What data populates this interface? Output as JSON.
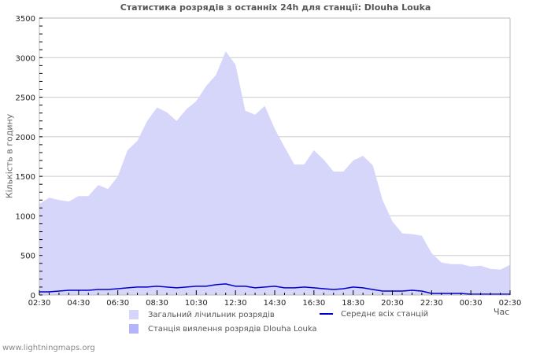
{
  "title": "Статистика розрядів з останніх 24h для станції: Dlouha Louka",
  "y_axis_label": "Кількість в годину",
  "x_axis_label": "Час",
  "footer": "www.lightningmaps.org",
  "legend": {
    "total": "Загальний лічильник розрядів",
    "station": "Станція виялення розрядів Dlouha Louka",
    "average": "Середнє всіх станцій"
  },
  "colors": {
    "total_fill": "#d6d6fa",
    "station_fill": "#b4b4fa",
    "average_line": "#0000cc",
    "grid": "#cccccc",
    "axis": "#bbbbbb"
  },
  "chart_data": {
    "type": "area",
    "title": "Статистика розрядів з останніх 24h для станції: Dlouha Louka",
    "xlabel": "Час",
    "ylabel": "Кількість в годину",
    "ylim": [
      0,
      3500
    ],
    "yticks": [
      0,
      500,
      1000,
      1500,
      2000,
      2500,
      3000,
      3500
    ],
    "xtick_labels": [
      "02:30",
      "04:30",
      "06:30",
      "08:30",
      "10:30",
      "12:30",
      "14:30",
      "16:30",
      "18:30",
      "20:30",
      "22:30",
      "00:30",
      "02:30"
    ],
    "grid": true,
    "legend_position": "bottom",
    "x": [
      "02:30",
      "03:00",
      "03:30",
      "04:00",
      "04:30",
      "05:00",
      "05:30",
      "06:00",
      "06:30",
      "07:00",
      "07:30",
      "08:00",
      "08:30",
      "09:00",
      "09:30",
      "10:00",
      "10:30",
      "11:00",
      "11:30",
      "12:00",
      "12:30",
      "13:00",
      "13:30",
      "14:00",
      "14:30",
      "15:00",
      "15:30",
      "16:00",
      "16:30",
      "17:00",
      "17:30",
      "18:00",
      "18:30",
      "19:00",
      "19:30",
      "20:00",
      "20:30",
      "21:00",
      "21:30",
      "22:00",
      "22:30",
      "23:00",
      "23:30",
      "00:00",
      "00:30",
      "01:00",
      "01:30",
      "02:00",
      "02:30"
    ],
    "series": [
      {
        "name": "Загальний лічильник розрядів",
        "values": [
          1150,
          1230,
          1200,
          1180,
          1250,
          1250,
          1390,
          1340,
          1500,
          1830,
          1950,
          2200,
          2370,
          2310,
          2200,
          2350,
          2450,
          2640,
          2780,
          3080,
          2910,
          2330,
          2280,
          2390,
          2100,
          1870,
          1650,
          1650,
          1830,
          1710,
          1560,
          1560,
          1700,
          1760,
          1640,
          1200,
          930,
          780,
          770,
          750,
          530,
          410,
          390,
          390,
          360,
          370,
          330,
          320,
          380
        ]
      },
      {
        "name": "Станція виялення розрядів Dlouha Louka",
        "values": [
          0,
          0,
          0,
          0,
          0,
          0,
          0,
          0,
          0,
          0,
          0,
          0,
          0,
          0,
          0,
          0,
          0,
          0,
          0,
          0,
          0,
          0,
          0,
          0,
          0,
          0,
          0,
          0,
          0,
          0,
          0,
          0,
          0,
          0,
          0,
          0,
          0,
          0,
          0,
          0,
          0,
          0,
          0,
          0,
          0,
          0,
          0,
          0,
          0
        ]
      },
      {
        "name": "Середнє всіх станцій",
        "values": [
          40,
          40,
          50,
          60,
          60,
          60,
          70,
          70,
          80,
          90,
          100,
          100,
          110,
          100,
          90,
          100,
          110,
          110,
          130,
          140,
          110,
          110,
          90,
          100,
          110,
          90,
          90,
          100,
          90,
          80,
          70,
          80,
          100,
          90,
          70,
          50,
          50,
          50,
          60,
          50,
          20,
          20,
          20,
          20,
          10,
          10,
          10,
          10,
          10
        ]
      }
    ]
  }
}
